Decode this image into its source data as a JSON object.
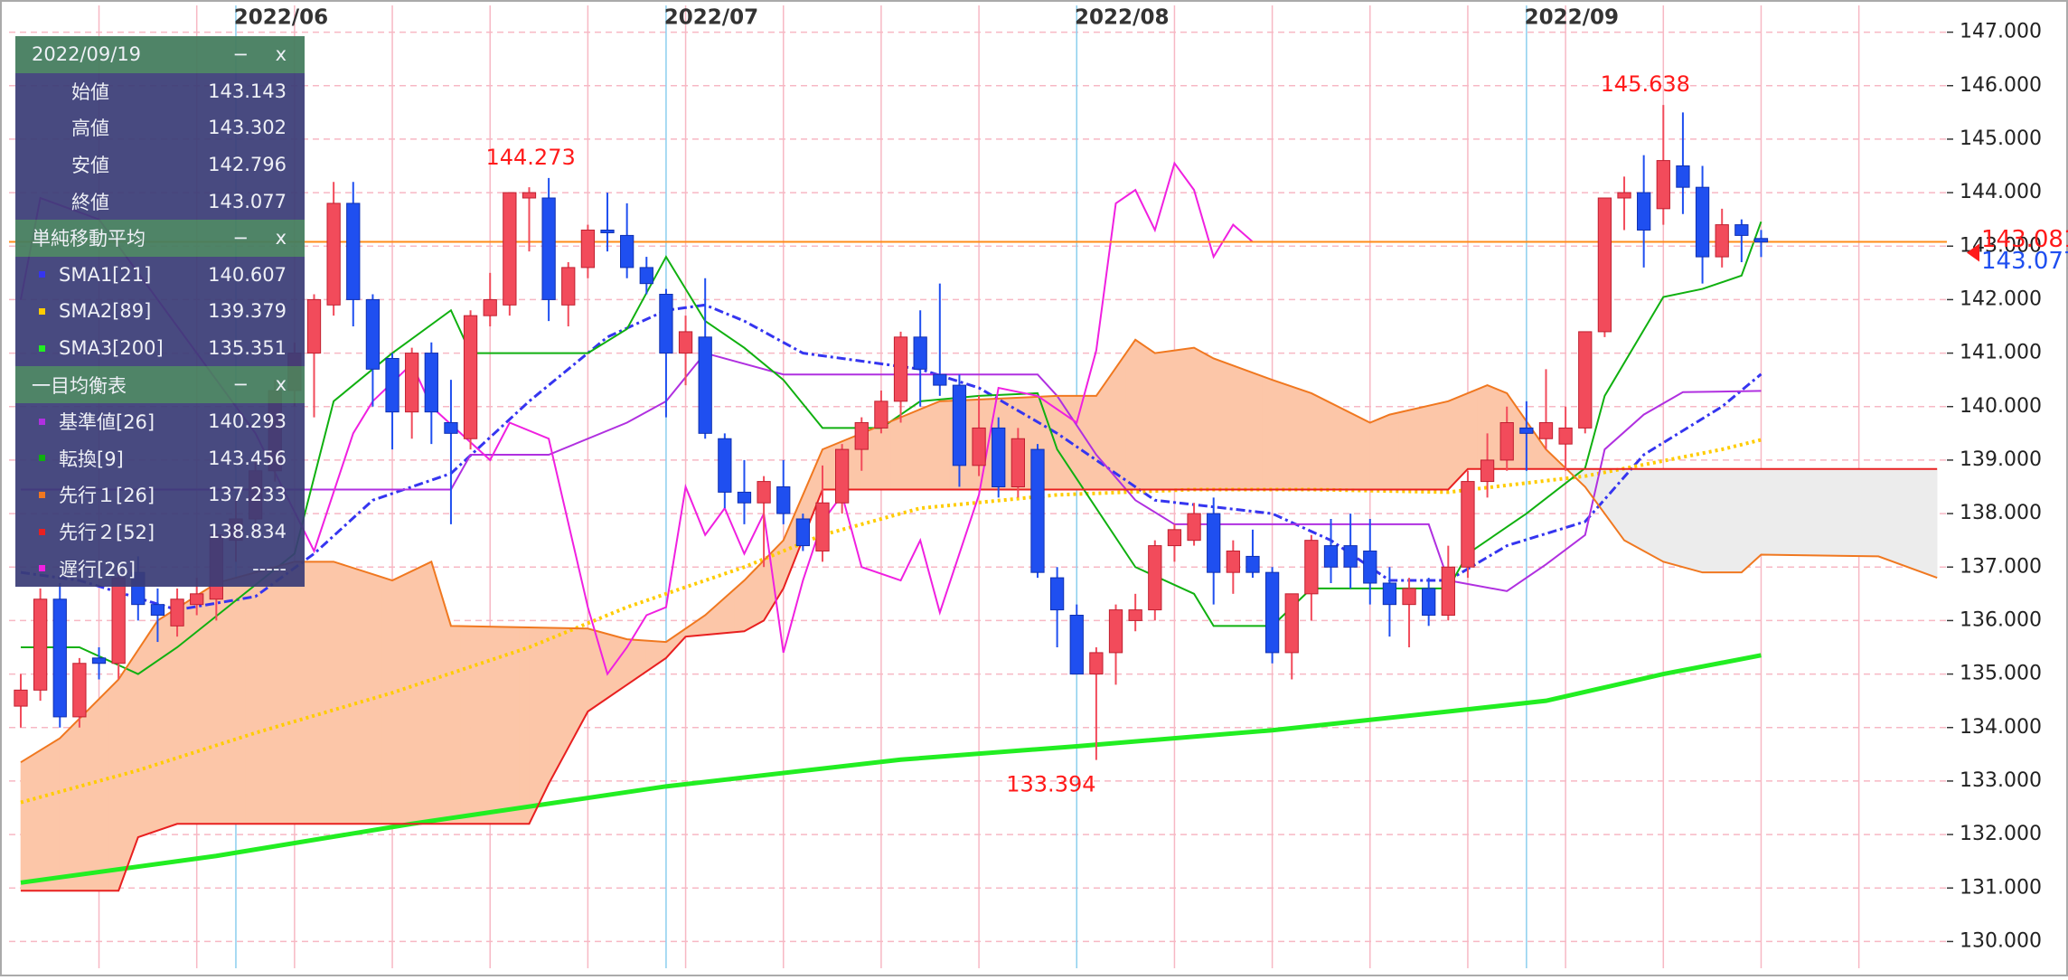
{
  "chart_data": {
    "type": "candlestick",
    "categories": [
      null,
      null,
      null,
      null,
      null,
      null,
      null,
      null,
      null,
      null,
      null,
      "2022/06",
      null,
      null,
      null,
      null,
      null,
      null,
      null,
      null,
      null,
      null,
      null,
      null,
      null,
      null,
      null,
      null,
      null,
      null,
      null,
      null,
      null,
      "2022/07",
      null,
      null,
      null,
      null,
      null,
      null,
      null,
      null,
      null,
      null,
      null,
      null,
      null,
      null,
      null,
      null,
      null,
      null,
      null,
      null,
      "2022/08",
      null,
      null,
      null,
      null,
      null,
      null,
      null,
      null,
      null,
      null,
      null,
      null,
      null,
      null,
      null,
      null,
      null,
      null,
      null,
      null,
      null,
      null,
      "2022/09",
      null,
      null,
      null,
      null,
      null,
      null,
      null,
      null,
      null,
      null,
      null,
      null,
      null,
      null,
      null,
      null,
      null,
      null,
      null,
      null,
      null
    ],
    "open": [
      134.4,
      134.7,
      136.4,
      134.2,
      135.3,
      135.2,
      136.9,
      136.3,
      135.9,
      136.3,
      136.4,
      137.5,
      137.9,
      138.8,
      140.3,
      141.0,
      141.9,
      143.8,
      142.0,
      140.9,
      139.9,
      141.0,
      139.7,
      139.4,
      141.7,
      141.9,
      143.9,
      143.9,
      141.9,
      142.6,
      143.3,
      143.2,
      142.6,
      142.1,
      141.0,
      141.3,
      139.4,
      138.4,
      138.2,
      138.5,
      137.9,
      137.3,
      138.2,
      139.2,
      139.6,
      140.1,
      141.3,
      140.6,
      140.4,
      138.9,
      139.6,
      138.5,
      139.2,
      136.8,
      136.1,
      135.0,
      135.4,
      136.0,
      136.2,
      137.4,
      137.5,
      138.0,
      136.9,
      137.2,
      136.9,
      135.4,
      136.5,
      137.4,
      137.4,
      137.3,
      136.7,
      136.3,
      136.6,
      136.1,
      137.0,
      138.6,
      139.0,
      139.6,
      139.4,
      139.3,
      139.6,
      141.4,
      143.9,
      144.0,
      143.7,
      144.5,
      144.1,
      142.8,
      143.4,
      143.143,
      null,
      null,
      null,
      null,
      null,
      null,
      null,
      null,
      null
    ],
    "close": [
      134.7,
      136.4,
      134.2,
      135.2,
      135.2,
      136.8,
      136.3,
      136.1,
      136.4,
      136.5,
      137.6,
      137.9,
      138.8,
      140.3,
      141.0,
      142.0,
      143.8,
      142.0,
      140.7,
      139.9,
      141.0,
      139.9,
      139.5,
      141.7,
      142.0,
      144.0,
      144.0,
      142.0,
      142.6,
      143.3,
      143.25,
      142.6,
      142.3,
      141.0,
      141.4,
      139.5,
      138.4,
      138.2,
      138.6,
      138.0,
      137.4,
      138.2,
      139.2,
      139.7,
      140.1,
      141.3,
      140.7,
      140.4,
      138.9,
      139.6,
      138.5,
      139.4,
      136.9,
      136.2,
      135.0,
      135.4,
      136.2,
      136.2,
      137.4,
      137.7,
      138.0,
      136.9,
      137.3,
      136.9,
      135.4,
      136.5,
      137.5,
      137.0,
      137.0,
      136.7,
      136.3,
      136.6,
      136.1,
      137.0,
      138.6,
      139.0,
      139.7,
      139.5,
      139.7,
      139.6,
      141.4,
      143.9,
      144.0,
      143.3,
      144.6,
      144.1,
      142.8,
      143.4,
      143.2,
      143.077,
      null,
      null,
      null,
      null,
      null,
      null,
      null,
      null,
      null
    ],
    "high": [
      135.0,
      136.6,
      136.7,
      135.3,
      135.5,
      137.0,
      137.2,
      136.6,
      136.6,
      136.8,
      137.7,
      138.3,
      139.0,
      140.5,
      141.2,
      142.1,
      144.2,
      144.2,
      142.1,
      141.0,
      141.1,
      141.2,
      140.5,
      141.8,
      142.5,
      144.0,
      144.1,
      144.273,
      142.7,
      143.4,
      144.0,
      143.8,
      142.8,
      142.2,
      141.7,
      142.4,
      139.5,
      139.0,
      138.7,
      139.0,
      138.0,
      138.9,
      139.3,
      139.8,
      140.3,
      141.4,
      141.8,
      142.3,
      140.6,
      140.2,
      139.8,
      139.6,
      139.3,
      137.0,
      136.3,
      135.5,
      136.3,
      136.5,
      137.5,
      137.8,
      138.2,
      138.3,
      137.5,
      137.7,
      137.0,
      136.5,
      137.6,
      137.9,
      138.0,
      137.9,
      137.0,
      136.8,
      136.8,
      137.4,
      138.8,
      139.5,
      140.0,
      140.1,
      140.7,
      140.0,
      141.4,
      143.9,
      144.3,
      144.7,
      145.638,
      145.5,
      144.5,
      143.7,
      143.5,
      143.302,
      null,
      null,
      null,
      null,
      null,
      null,
      null,
      null,
      null
    ],
    "low": [
      134.0,
      134.5,
      134.0,
      134.0,
      134.9,
      134.9,
      136.0,
      135.6,
      135.7,
      136.1,
      136.0,
      137.1,
      137.6,
      138.6,
      140.0,
      139.8,
      141.7,
      141.5,
      140.0,
      139.2,
      139.4,
      139.3,
      137.8,
      139.2,
      141.5,
      141.7,
      142.9,
      141.6,
      141.5,
      142.4,
      142.9,
      142.4,
      142.1,
      139.8,
      140.4,
      139.4,
      138.1,
      137.8,
      137.0,
      137.8,
      137.3,
      137.1,
      138.0,
      138.8,
      139.5,
      139.7,
      140.0,
      140.2,
      138.5,
      138.7,
      138.3,
      138.3,
      136.8,
      135.5,
      135.0,
      133.394,
      134.8,
      135.8,
      136.0,
      137.1,
      137.4,
      136.3,
      136.5,
      136.8,
      135.2,
      134.9,
      136.0,
      136.7,
      136.6,
      136.3,
      135.7,
      135.5,
      135.9,
      136.0,
      136.8,
      138.3,
      138.8,
      138.8,
      139.2,
      138.8,
      139.5,
      141.3,
      143.3,
      142.6,
      143.4,
      143.6,
      142.3,
      142.6,
      142.7,
      142.796,
      null,
      null,
      null,
      null,
      null,
      null,
      null,
      null,
      null
    ],
    "up_color": "#f24b5b",
    "down_color": "#1f4ff0",
    "ylim": [
      129.5,
      147.5
    ],
    "yticks": [
      {
        "value": 130,
        "label": "130.000"
      },
      {
        "value": 131,
        "label": "131.000"
      },
      {
        "value": 132,
        "label": "132.000"
      },
      {
        "value": 133,
        "label": "133.000"
      },
      {
        "value": 134,
        "label": "134.000"
      },
      {
        "value": 135,
        "label": "135.000"
      },
      {
        "value": 136,
        "label": "136.000"
      },
      {
        "value": 137,
        "label": "137.000"
      },
      {
        "value": 138,
        "label": "138.000"
      },
      {
        "value": 139,
        "label": "139.000"
      },
      {
        "value": 140,
        "label": "140.000"
      },
      {
        "value": 141,
        "label": "141.000"
      },
      {
        "value": 142,
        "label": "142.000"
      },
      {
        "value": 143,
        "label": "143.000"
      },
      {
        "value": 144,
        "label": "144.000"
      },
      {
        "value": 145,
        "label": "145.000"
      },
      {
        "value": 146,
        "label": "146.000"
      },
      {
        "value": 147,
        "label": "147.000"
      }
    ],
    "grid": true,
    "price_line": {
      "value": 143.081,
      "color": "#ff8c1a",
      "label_color": "#ff1a1a"
    },
    "peak_labels": {
      "high": [
        27,
        84
      ],
      "low": [
        55
      ],
      "color": "#ff1a1a"
    },
    "panel": {
      "date": "2022/09/19",
      "buttons": [
        "−",
        "x"
      ],
      "ohlc_labels": [
        "始値",
        "高値",
        "安値",
        "終値"
      ]
    },
    "indicators": [
      {
        "title": "単純移動平均",
        "lines": [
          {
            "name": "SMA1[21]",
            "color": "#3535f0",
            "style": "dashdot",
            "width": 3,
            "x": [
              0,
              3,
              8,
              12,
              15,
              18,
              22,
              26,
              30,
              33,
              35,
              37,
              40,
              46,
              49,
              53,
              56,
              58,
              64,
              67,
              70,
              73,
              76,
              80,
              83,
              87,
              89
            ],
            "values": [
              136.9,
              136.75,
              136.2,
              136.45,
              137.25,
              138.25,
              138.75,
              140.1,
              141.3,
              141.8,
              141.9,
              141.6,
              141.0,
              140.7,
              140.35,
              139.5,
              138.75,
              138.25,
              138.0,
              137.5,
              136.75,
              136.75,
              137.4,
              137.85,
              139.1,
              140.0,
              140.607
            ]
          },
          {
            "name": "SMA2[89]",
            "color": "#ffcc00",
            "style": "dotted",
            "width": 4,
            "x": [
              0,
              6,
              12,
              19,
              26,
              31,
              37,
              41,
              46,
              53,
              60,
              66,
              73,
              80,
              87,
              89
            ],
            "values": [
              132.6,
              133.2,
              133.9,
              134.65,
              135.5,
              136.25,
              137.0,
              137.6,
              138.1,
              138.35,
              138.45,
              138.45,
              138.4,
              138.7,
              139.2,
              139.379
            ]
          },
          {
            "name": "SMA3[200]",
            "color": "#22ee22",
            "style": "solid",
            "width": 5,
            "x": [
              0,
              10,
              20,
              33,
              45,
              54,
              64,
              73,
              78,
              84,
              89
            ],
            "values": [
              131.1,
              131.6,
              132.2,
              132.9,
              133.4,
              133.65,
              133.95,
              134.3,
              134.5,
              135.0,
              135.351
            ]
          }
        ]
      },
      {
        "title": "一目均衡表",
        "cloud_colors": [
          "#fcc6a8",
          "#ececec"
        ],
        "lines": [
          {
            "name": "基準値[26]",
            "color": "#b030e0",
            "style": "solid",
            "width": 2,
            "x": [
              0,
              22,
              23,
              27,
              31,
              33,
              35,
              39,
              52,
              53,
              55,
              57,
              59,
              72,
              73,
              76,
              78,
              80,
              81,
              83,
              85,
              89
            ],
            "values": [
              138.45,
              138.45,
              139.1,
              139.1,
              139.7,
              140.1,
              141.0,
              140.6,
              140.6,
              140.2,
              139.1,
              138.25,
              137.8,
              137.8,
              136.75,
              136.55,
              137.05,
              137.6,
              139.2,
              139.85,
              140.27,
              140.293
            ]
          },
          {
            "name": "転換[9]",
            "color": "#10b010",
            "style": "solid",
            "width": 2,
            "x": [
              0,
              3,
              6,
              8,
              14,
              16,
              19,
              22,
              23,
              29,
              31,
              33,
              35,
              37,
              39,
              41,
              44,
              46,
              49,
              52,
              53,
              55,
              57,
              60,
              61,
              64,
              66,
              73,
              74,
              77,
              80,
              81,
              84,
              86,
              88,
              89
            ],
            "values": [
              135.5,
              135.5,
              135.0,
              135.5,
              137.25,
              140.1,
              141.0,
              141.8,
              141.0,
              141.0,
              141.45,
              142.8,
              141.6,
              141.1,
              140.5,
              139.6,
              139.6,
              140.1,
              140.2,
              140.25,
              139.2,
              138.1,
              137.0,
              136.5,
              135.9,
              135.9,
              136.6,
              136.6,
              137.25,
              138.0,
              138.85,
              140.2,
              142.05,
              142.2,
              142.45,
              143.456
            ]
          },
          {
            "name": "先行１[26]",
            "color": "#f07820",
            "style": "solid",
            "width": 2,
            "cloud": "a",
            "x": [
              0,
              2,
              5,
              7,
              10,
              14,
              16,
              19,
              21,
              22,
              29,
              31,
              33,
              35,
              37,
              39,
              41,
              47,
              53,
              55,
              57,
              58,
              60,
              61,
              64,
              66,
              69,
              70,
              73,
              75,
              76,
              78,
              80,
              82,
              84,
              86,
              88,
              89,
              95,
              98
            ],
            "values": [
              133.35,
              133.8,
              134.9,
              136.0,
              136.7,
              137.1,
              137.1,
              136.75,
              137.1,
              135.9,
              135.85,
              135.65,
              135.6,
              136.1,
              136.75,
              137.5,
              139.2,
              140.1,
              140.2,
              140.2,
              141.25,
              141.0,
              141.1,
              140.9,
              140.5,
              140.25,
              139.7,
              139.85,
              140.1,
              140.4,
              140.25,
              139.2,
              138.5,
              137.5,
              137.1,
              136.9,
              136.9,
              137.233,
              137.2,
              136.8
            ]
          },
          {
            "name": "先行２[52]",
            "color": "#e82020",
            "style": "solid",
            "width": 2,
            "cloud": "b",
            "x": [
              0,
              5,
              6,
              8,
              26,
              27,
              29,
              31,
              33,
              34,
              37,
              38,
              39,
              41,
              73,
              74,
              89,
              98
            ],
            "values": [
              130.95,
              130.95,
              131.95,
              132.2,
              132.2,
              132.95,
              134.3,
              134.8,
              135.3,
              135.7,
              135.8,
              136.0,
              136.6,
              138.45,
              138.45,
              138.834,
              138.834,
              138.834
            ]
          },
          {
            "name": "遅行[26]",
            "color": "#f020e0",
            "style": "solid",
            "width": 2,
            "current_label": "-----",
            "x": [
              0,
              1,
              4,
              8,
              12,
              15,
              17,
              18,
              20,
              21,
              24,
              25,
              27,
              29,
              30,
              31,
              32,
              33,
              34,
              35,
              36,
              37,
              38,
              39,
              40,
              41,
              42,
              43,
              45,
              46,
              47,
              49,
              50,
              52,
              54,
              55,
              56,
              57,
              58,
              59,
              60,
              61,
              62,
              63
            ],
            "values": [
              142.0,
              143.9,
              143.5,
              141.5,
              139.5,
              137.3,
              139.5,
              140.1,
              140.8,
              140.0,
              139.0,
              139.7,
              139.4,
              136.25,
              135.0,
              135.5,
              136.1,
              136.25,
              138.5,
              137.6,
              138.1,
              137.25,
              138.0,
              135.4,
              136.75,
              137.85,
              138.35,
              137.0,
              136.75,
              137.5,
              136.15,
              138.35,
              140.35,
              140.2,
              139.7,
              141.05,
              143.8,
              144.05,
              143.3,
              144.55,
              144.05,
              142.8,
              143.4,
              143.08
            ]
          }
        ]
      }
    ]
  }
}
